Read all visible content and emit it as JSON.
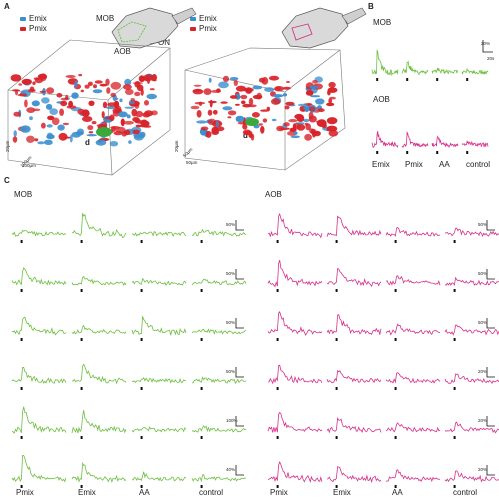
{
  "panels": {
    "a": "A",
    "b": "B",
    "c": "C"
  },
  "legend": {
    "emix_label": "Emix",
    "pmix_label": "Pmix",
    "emix_color": "#3b8fd0",
    "pmix_color": "#d8232a"
  },
  "schematic": {
    "mob": "MOB",
    "aob": "AOB",
    "on": "ON"
  },
  "cube_left": {
    "d": "d",
    "scale_z": "20µm",
    "scale_x": "100µm",
    "scale_y": "100µm"
  },
  "cube_right": {
    "d": "d",
    "scale_z": "20µm",
    "scale_x": "50µm",
    "scale_y": "50µm"
  },
  "panel_b": {
    "mob": "MOB",
    "aob": "AOB",
    "scale_y": "20%",
    "scale_x": "20s",
    "x_labels": [
      "Emix",
      "Pmix",
      "AA",
      "control"
    ]
  },
  "panel_c": {
    "mob": "MOB",
    "aob": "AOB",
    "mob_x_labels": [
      "Pmix",
      "Emix",
      "AA",
      "control"
    ],
    "aob_x_labels": [
      "Pmix",
      "Emix",
      "AA",
      "control"
    ],
    "mob_scale_pct": [
      "50%",
      "50%",
      "50%",
      "50%",
      "100%",
      "40%"
    ],
    "aob_scale_pct": [
      "50%",
      "50%",
      "50%",
      "20%",
      "20%",
      "20%"
    ],
    "scale_s": "20s"
  },
  "colors": {
    "mob_trace": "#6cbf3f",
    "aob_trace": "#d6308a"
  }
}
